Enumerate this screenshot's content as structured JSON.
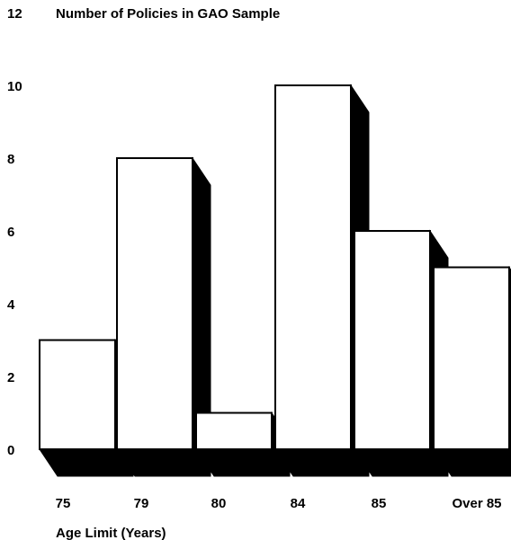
{
  "chart_data": {
    "type": "bar",
    "title": "Number of Policies in GAO Sample",
    "xlabel": "Age Limit (Years)",
    "ylabel": "",
    "categories": [
      "75",
      "79",
      "80",
      "84",
      "85",
      "Over 85"
    ],
    "values": [
      3,
      8,
      1,
      10,
      6,
      5
    ],
    "ylim": [
      0,
      12
    ],
    "yticks": [
      "0",
      "2",
      "4",
      "6",
      "8",
      "10",
      "12"
    ],
    "grid": false,
    "legend": "none",
    "style": "3d-shadow",
    "colors": {
      "bar_face": "#ffffff",
      "bar_edge": "#000000",
      "shadow": "#000000",
      "text": "#000000"
    }
  }
}
